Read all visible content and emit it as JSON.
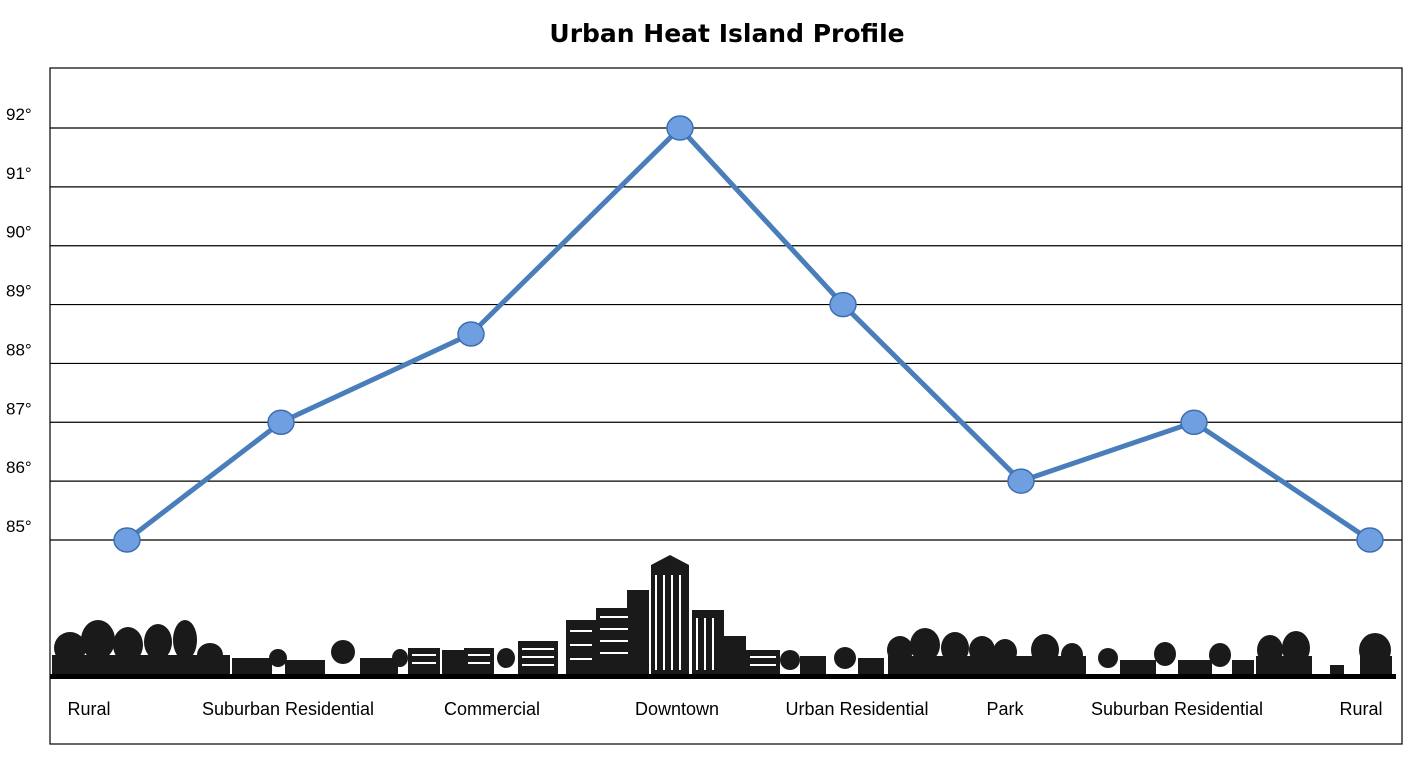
{
  "chart_data": {
    "type": "line",
    "title": "Urban Heat Island Profile",
    "xlabel": "",
    "ylabel": "",
    "categories": [
      "Rural",
      "Suburban Residential",
      "Commercial",
      "Downtown",
      "Urban Residential",
      "Park",
      "Suburban Residential",
      "Rural"
    ],
    "series": [
      {
        "values": [
          85,
          87,
          88.5,
          92,
          89,
          86,
          87,
          85
        ]
      }
    ],
    "yticks": [
      "85°",
      "86°",
      "87°",
      "88°",
      "89°",
      "90°",
      "91°",
      "92°"
    ],
    "ylim": [
      85,
      92
    ],
    "grid": true,
    "legend": "none",
    "colors": {
      "line": "#4a7ebb",
      "marker_fill": "#6f9fe0",
      "marker_stroke": "#3d6fb0",
      "grid": "#000000"
    }
  }
}
